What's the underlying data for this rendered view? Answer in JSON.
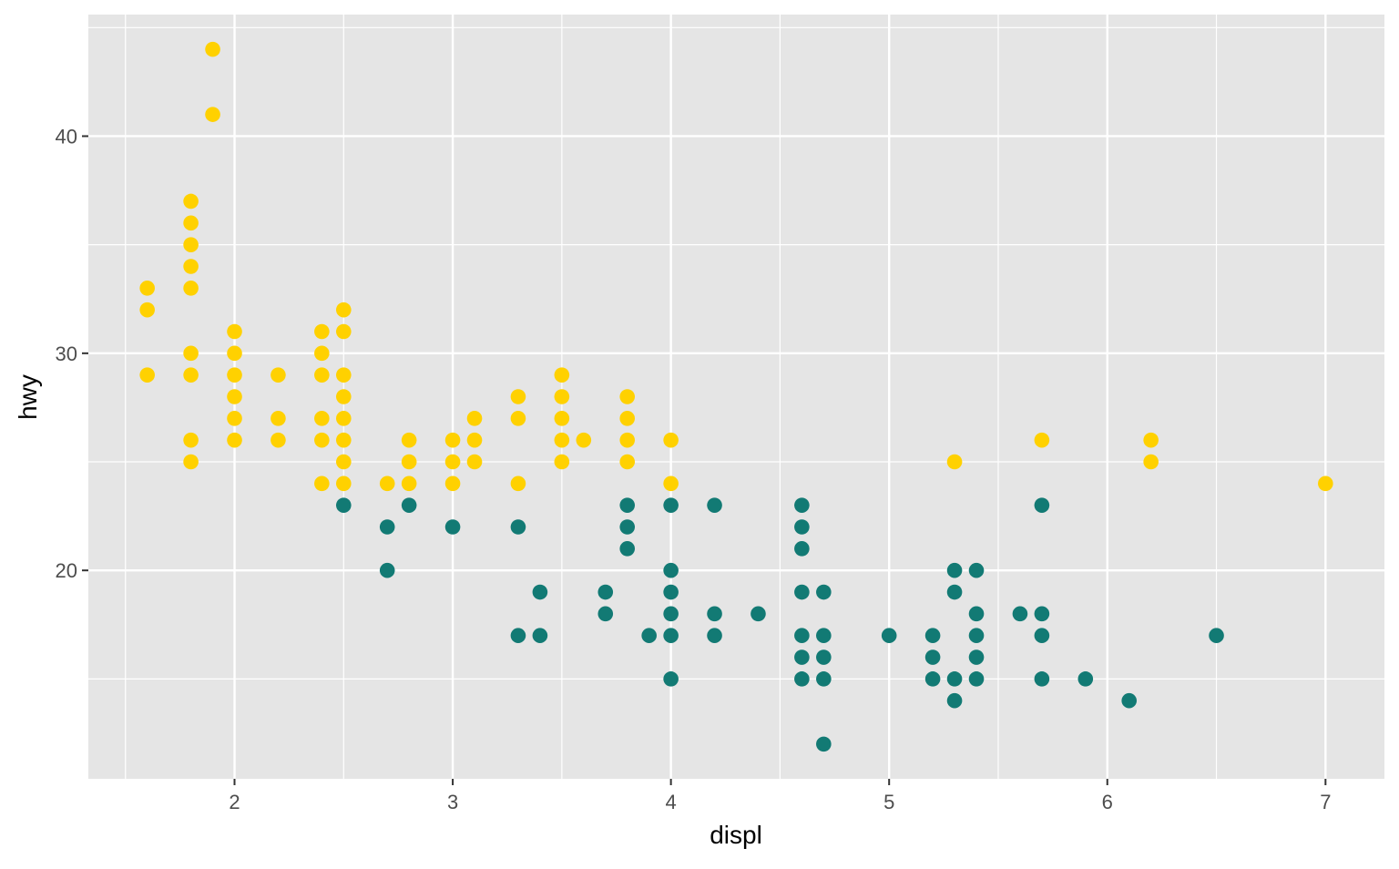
{
  "chart_data": {
    "type": "scatter",
    "xlabel": "displ",
    "ylabel": "hwy",
    "xlim": [
      1.33,
      7.27
    ],
    "ylim": [
      10.4,
      45.6
    ],
    "x_ticks": [
      2,
      3,
      4,
      5,
      6,
      7
    ],
    "y_ticks": [
      20,
      30,
      40
    ],
    "grid": true,
    "legend": "none",
    "colors": {
      "panel": "#E5E5E5",
      "grid": "#FFFFFF",
      "yellow": "#FFD100",
      "teal": "#127A74"
    },
    "series": [
      {
        "color": "#FFD100",
        "points": [
          [
            1.6,
            33
          ],
          [
            1.6,
            32
          ],
          [
            1.6,
            29
          ],
          [
            1.8,
            37
          ],
          [
            1.8,
            36
          ],
          [
            1.8,
            35
          ],
          [
            1.8,
            34
          ],
          [
            1.8,
            33
          ],
          [
            1.8,
            30
          ],
          [
            1.8,
            29
          ],
          [
            1.8,
            26
          ],
          [
            1.8,
            25
          ],
          [
            1.9,
            44
          ],
          [
            1.9,
            41
          ],
          [
            2.0,
            31
          ],
          [
            2.0,
            30
          ],
          [
            2.0,
            29
          ],
          [
            2.0,
            28
          ],
          [
            2.0,
            27
          ],
          [
            2.0,
            26
          ],
          [
            2.2,
            29
          ],
          [
            2.2,
            27
          ],
          [
            2.2,
            26
          ],
          [
            2.4,
            31
          ],
          [
            2.4,
            30
          ],
          [
            2.4,
            29
          ],
          [
            2.4,
            27
          ],
          [
            2.4,
            26
          ],
          [
            2.4,
            24
          ],
          [
            2.5,
            32
          ],
          [
            2.5,
            31
          ],
          [
            2.5,
            29
          ],
          [
            2.5,
            28
          ],
          [
            2.5,
            27
          ],
          [
            2.5,
            26
          ],
          [
            2.5,
            25
          ],
          [
            2.5,
            24
          ],
          [
            2.7,
            24
          ],
          [
            2.8,
            26
          ],
          [
            2.8,
            25
          ],
          [
            2.8,
            24
          ],
          [
            3.0,
            26
          ],
          [
            3.0,
            25
          ],
          [
            3.0,
            24
          ],
          [
            3.1,
            27
          ],
          [
            3.1,
            26
          ],
          [
            3.1,
            25
          ],
          [
            3.3,
            28
          ],
          [
            3.3,
            27
          ],
          [
            3.3,
            24
          ],
          [
            3.5,
            29
          ],
          [
            3.5,
            28
          ],
          [
            3.5,
            27
          ],
          [
            3.5,
            26
          ],
          [
            3.5,
            25
          ],
          [
            3.6,
            26
          ],
          [
            3.8,
            28
          ],
          [
            3.8,
            27
          ],
          [
            3.8,
            26
          ],
          [
            3.8,
            25
          ],
          [
            4.0,
            26
          ],
          [
            4.0,
            24
          ],
          [
            5.3,
            25
          ],
          [
            5.7,
            26
          ],
          [
            6.2,
            26
          ],
          [
            6.2,
            25
          ],
          [
            7.0,
            24
          ]
        ]
      },
      {
        "color": "#127A74",
        "points": [
          [
            2.5,
            23
          ],
          [
            2.7,
            22
          ],
          [
            2.7,
            20
          ],
          [
            2.8,
            23
          ],
          [
            3.0,
            22
          ],
          [
            3.3,
            22
          ],
          [
            3.3,
            17
          ],
          [
            3.4,
            19
          ],
          [
            3.4,
            17
          ],
          [
            3.7,
            19
          ],
          [
            3.7,
            18
          ],
          [
            3.8,
            23
          ],
          [
            3.8,
            22
          ],
          [
            3.8,
            21
          ],
          [
            3.9,
            17
          ],
          [
            4.0,
            23
          ],
          [
            4.0,
            20
          ],
          [
            4.0,
            19
          ],
          [
            4.0,
            18
          ],
          [
            4.0,
            17
          ],
          [
            4.0,
            15
          ],
          [
            4.2,
            23
          ],
          [
            4.2,
            18
          ],
          [
            4.2,
            17
          ],
          [
            4.4,
            18
          ],
          [
            4.6,
            23
          ],
          [
            4.6,
            22
          ],
          [
            4.6,
            21
          ],
          [
            4.6,
            19
          ],
          [
            4.6,
            17
          ],
          [
            4.6,
            16
          ],
          [
            4.6,
            15
          ],
          [
            4.7,
            19
          ],
          [
            4.7,
            17
          ],
          [
            4.7,
            16
          ],
          [
            4.7,
            15
          ],
          [
            4.7,
            12
          ],
          [
            5.0,
            17
          ],
          [
            5.2,
            17
          ],
          [
            5.2,
            16
          ],
          [
            5.2,
            15
          ],
          [
            5.3,
            20
          ],
          [
            5.3,
            19
          ],
          [
            5.3,
            15
          ],
          [
            5.3,
            14
          ],
          [
            5.4,
            20
          ],
          [
            5.4,
            18
          ],
          [
            5.4,
            17
          ],
          [
            5.4,
            16
          ],
          [
            5.4,
            15
          ],
          [
            5.6,
            18
          ],
          [
            5.7,
            23
          ],
          [
            5.7,
            18
          ],
          [
            5.7,
            17
          ],
          [
            5.7,
            15
          ],
          [
            5.9,
            15
          ],
          [
            6.1,
            14
          ],
          [
            6.5,
            17
          ]
        ]
      }
    ]
  }
}
